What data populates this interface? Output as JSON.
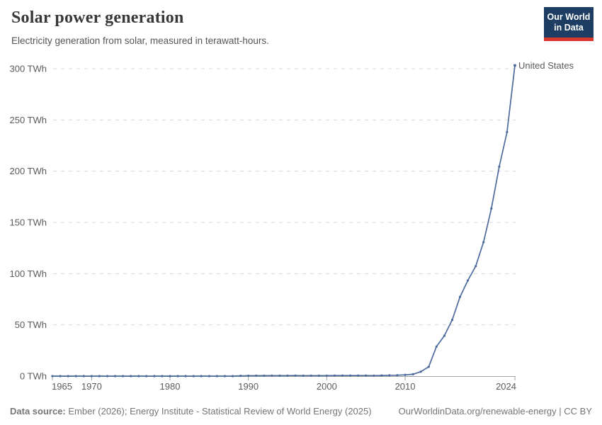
{
  "header": {
    "title": "Solar power generation",
    "subtitle": "Electricity generation from solar, measured in terawatt-hours.",
    "logo": {
      "line1": "Our World",
      "line2": "in Data",
      "bg_color": "#1d3d63",
      "accent_color": "#d7382e"
    }
  },
  "chart_data": {
    "type": "line",
    "title": "Solar power generation",
    "xlabel": "",
    "ylabel": "TWh",
    "xlim": [
      1965,
      2024
    ],
    "ylim": [
      0,
      300
    ],
    "x_ticks": [
      1965,
      1970,
      1980,
      1990,
      2000,
      2010,
      2024
    ],
    "y_ticks": [
      0,
      50,
      100,
      150,
      200,
      250,
      300
    ],
    "y_tick_suffix": " TWh",
    "grid": "horizontal-dashed",
    "grid_color": "#d8d8d8",
    "axis_color": "#a1a1a1",
    "legend_position": "end-of-line-label",
    "series": [
      {
        "name": "United States",
        "color": "#4c6a9c",
        "x": [
          1965,
          1966,
          1967,
          1968,
          1969,
          1970,
          1971,
          1972,
          1973,
          1974,
          1975,
          1976,
          1977,
          1978,
          1979,
          1980,
          1981,
          1982,
          1983,
          1984,
          1985,
          1986,
          1987,
          1988,
          1989,
          1990,
          1991,
          1992,
          1993,
          1994,
          1995,
          1996,
          1997,
          1998,
          1999,
          2000,
          2001,
          2002,
          2003,
          2004,
          2005,
          2006,
          2007,
          2008,
          2009,
          2010,
          2011,
          2012,
          2013,
          2014,
          2015,
          2016,
          2017,
          2018,
          2019,
          2020,
          2021,
          2022,
          2023,
          2024
        ],
        "values": [
          0,
          0,
          0,
          0,
          0,
          0,
          0,
          0,
          0,
          0,
          0,
          0,
          0,
          0,
          0,
          0,
          0,
          0,
          0,
          0.01,
          0.01,
          0.01,
          0.01,
          0.01,
          0.27,
          0.37,
          0.47,
          0.43,
          0.46,
          0.45,
          0.5,
          0.52,
          0.51,
          0.5,
          0.5,
          0.49,
          0.54,
          0.56,
          0.53,
          0.58,
          0.55,
          0.51,
          0.61,
          0.86,
          0.89,
          1.21,
          1.82,
          4.33,
          9.04,
          28.92,
          39.43,
          54.87,
          77.28,
          93.36,
          107.3,
          130.72,
          163.56,
          204.42,
          238.12,
          303.17
        ]
      }
    ]
  },
  "footer": {
    "datasource_label": "Data source:",
    "datasource_text": " Ember (2026); Energy Institute - Statistical Review of World Energy (2025)",
    "link": "OurWorldinData.org/renewable-energy | CC BY"
  }
}
